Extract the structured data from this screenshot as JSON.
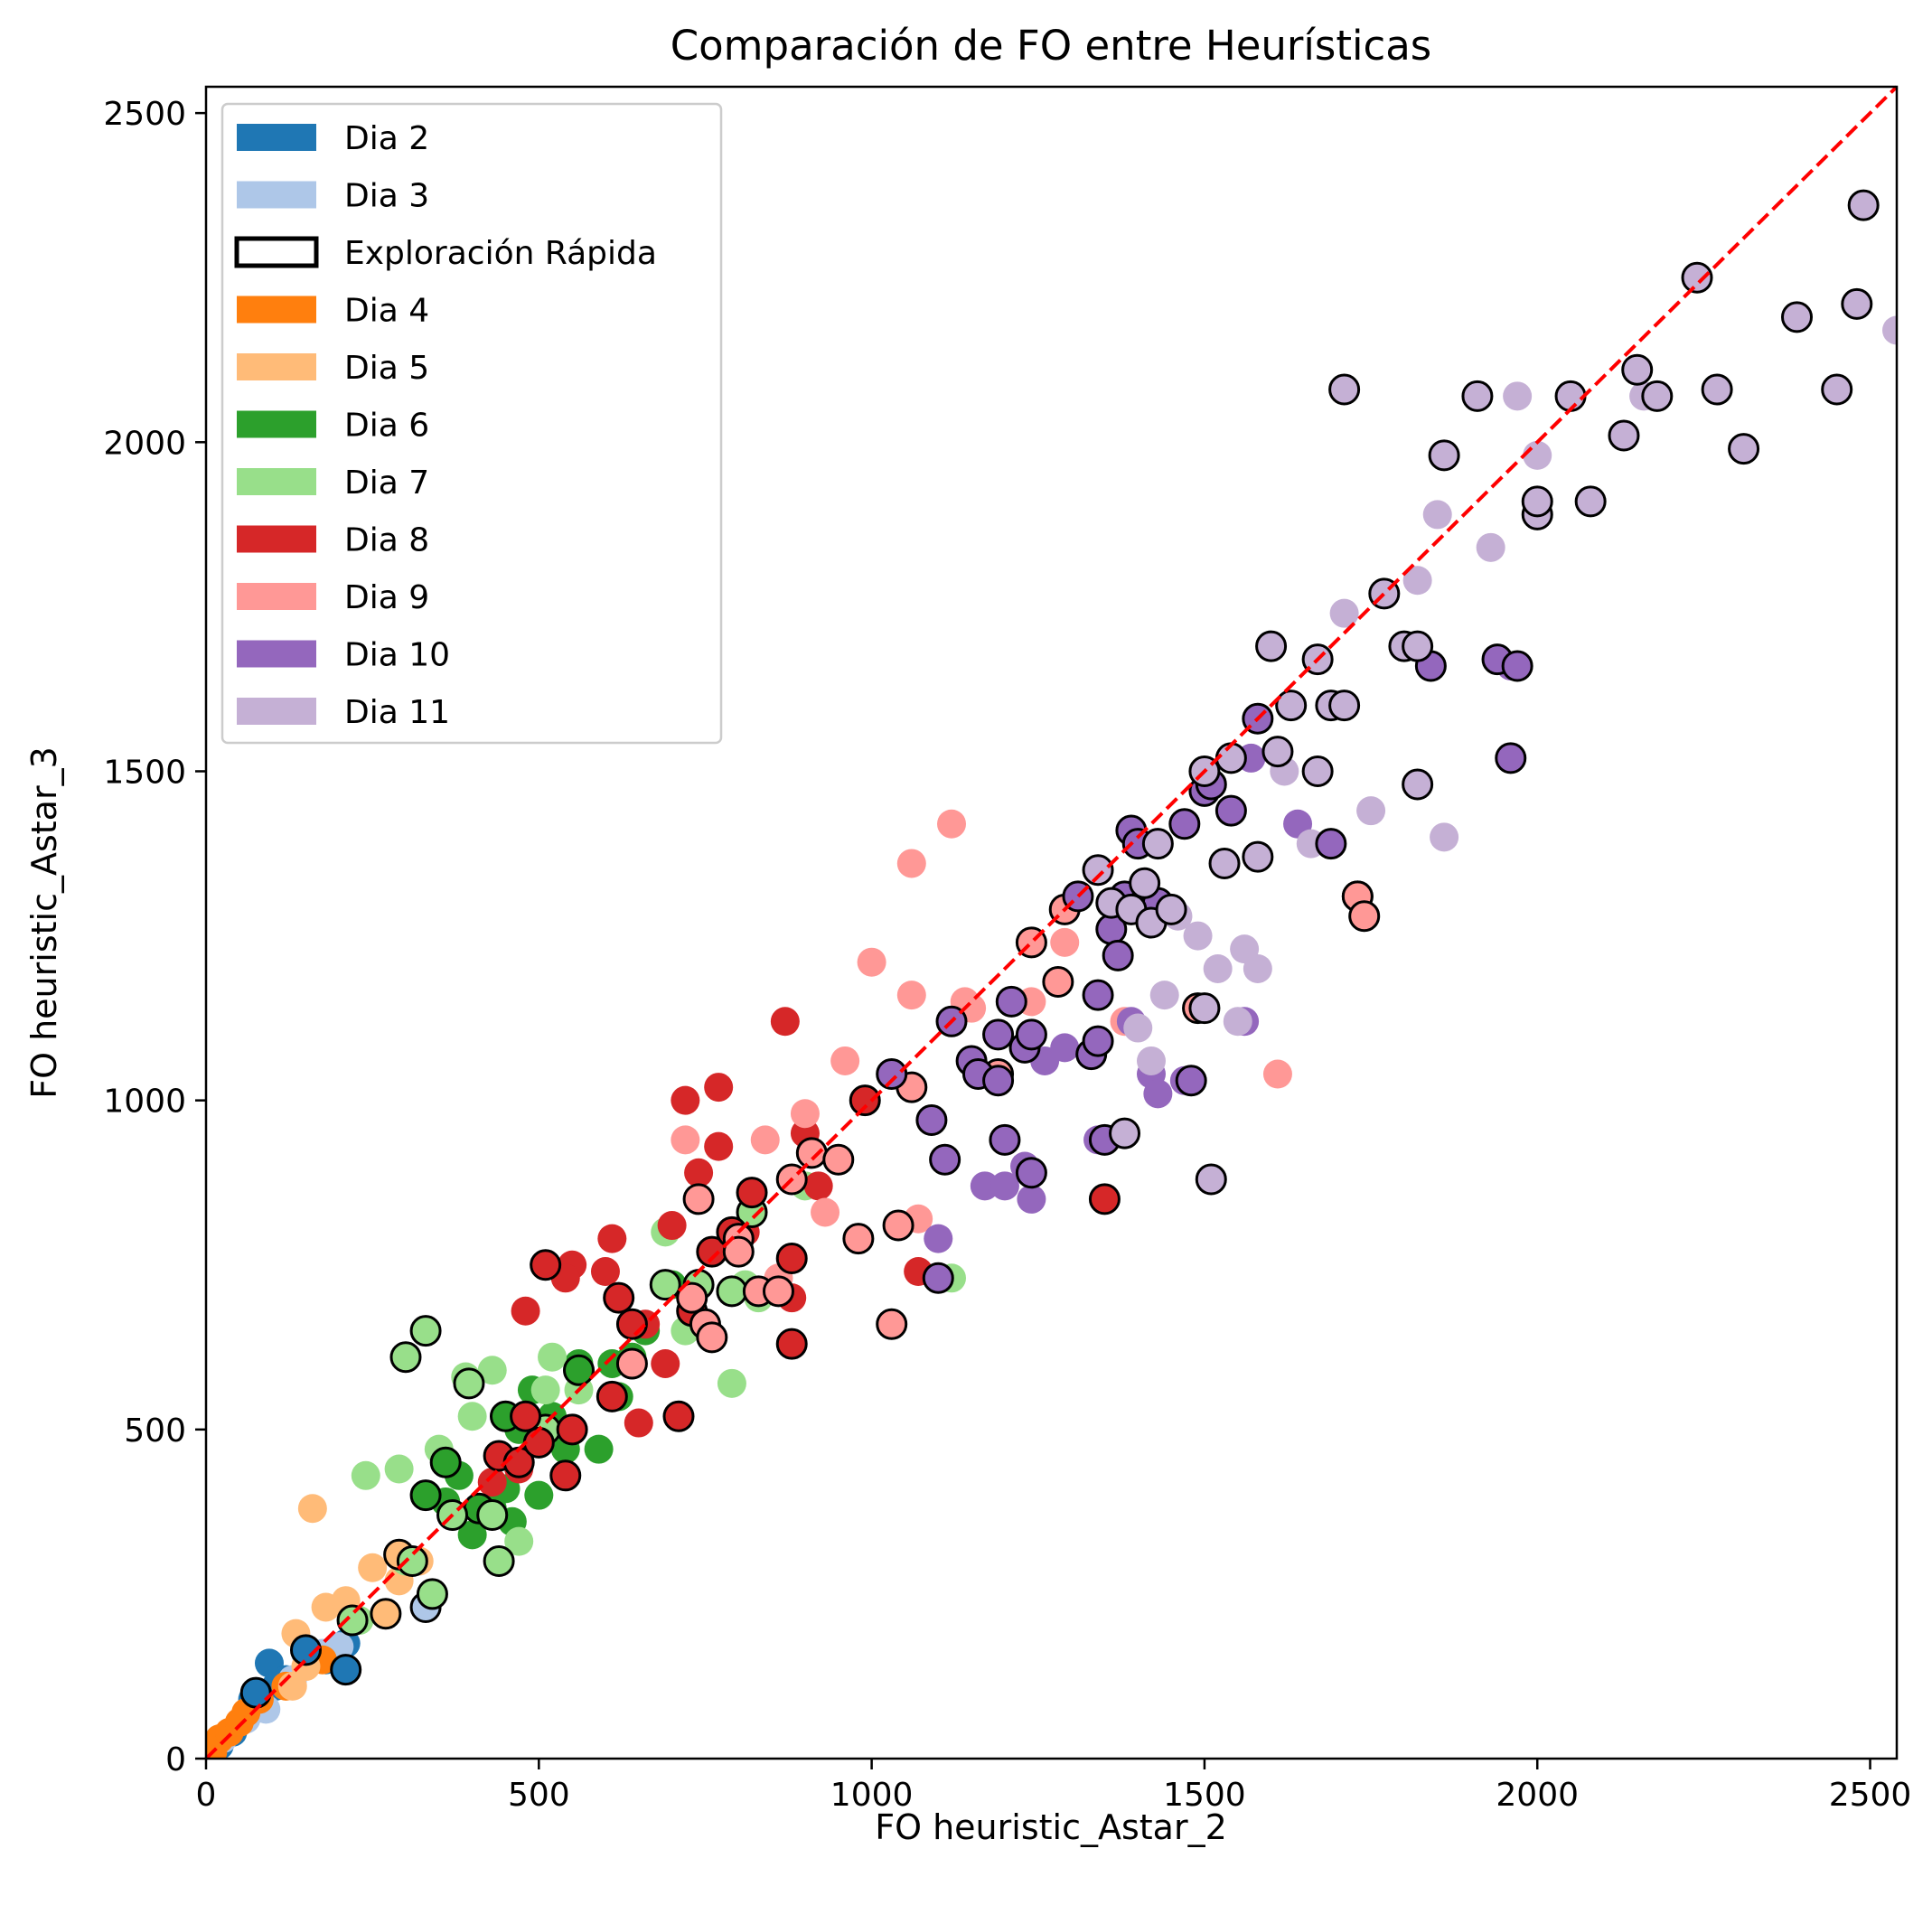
{
  "chart_data": {
    "type": "scatter",
    "title": "Comparación de FO entre Heurísticas",
    "xlabel": "FO heuristic_Astar_2",
    "ylabel": "FO heuristic_Astar_3",
    "xlim": [
      0,
      2540
    ],
    "ylim": [
      0,
      2540
    ],
    "xticks": [
      0,
      500,
      1000,
      1500,
      2000,
      2500
    ],
    "yticks": [
      0,
      500,
      1000,
      1500,
      2000,
      2500
    ],
    "grid": false,
    "legend_position": "top-left",
    "reference_line": {
      "style": "dashed",
      "color": "#ff0000",
      "slope": 1,
      "intercept": 0
    },
    "outline_legend": {
      "label": "Exploración Rápida",
      "meaning": "points with black outline"
    },
    "series": [
      {
        "name": "Dia 2",
        "color": "#1f77b4",
        "points": [
          [
            20,
            20
          ],
          [
            40,
            40
          ],
          [
            70,
            90
          ],
          [
            95,
            145
          ],
          [
            120,
            120
          ],
          [
            150,
            160
          ],
          [
            180,
            150
          ],
          [
            210,
            175
          ],
          [
            105,
            110
          ]
        ],
        "outlined": [
          [
            75,
            100
          ],
          [
            150,
            165
          ],
          [
            210,
            135
          ]
        ]
      },
      {
        "name": "Dia 3",
        "color": "#aec7e8",
        "points": [
          [
            25,
            30
          ],
          [
            60,
            60
          ],
          [
            90,
            75
          ],
          [
            130,
            120
          ],
          [
            175,
            160
          ],
          [
            200,
            170
          ],
          [
            330,
            230
          ]
        ],
        "outlined": [
          [
            330,
            230
          ]
        ]
      },
      {
        "name": "Dia 4",
        "color": "#ff7f0e",
        "points": [
          [
            10,
            10
          ],
          [
            20,
            30
          ],
          [
            35,
            40
          ],
          [
            50,
            55
          ],
          [
            60,
            70
          ],
          [
            80,
            90
          ],
          [
            120,
            110
          ],
          [
            175,
            150
          ]
        ],
        "outlined": []
      },
      {
        "name": "Dia 5",
        "color": "#ffbb78",
        "points": [
          [
            135,
            190
          ],
          [
            160,
            380
          ],
          [
            180,
            230
          ],
          [
            210,
            240
          ],
          [
            250,
            290
          ],
          [
            270,
            220
          ],
          [
            290,
            270
          ],
          [
            320,
            300
          ],
          [
            150,
            140
          ],
          [
            130,
            110
          ]
        ],
        "outlined": [
          [
            270,
            220
          ],
          [
            290,
            310
          ]
        ]
      },
      {
        "name": "Dia 6",
        "color": "#2ca02c",
        "points": [
          [
            330,
            400
          ],
          [
            360,
            390
          ],
          [
            380,
            430
          ],
          [
            400,
            340
          ],
          [
            430,
            380
          ],
          [
            460,
            360
          ],
          [
            470,
            500
          ],
          [
            490,
            560
          ],
          [
            520,
            520
          ],
          [
            540,
            470
          ],
          [
            560,
            600
          ],
          [
            590,
            470
          ],
          [
            610,
            600
          ],
          [
            620,
            550
          ],
          [
            640,
            610
          ],
          [
            660,
            650
          ],
          [
            700,
            720
          ],
          [
            450,
            410
          ],
          [
            500,
            400
          ]
        ],
        "outlined": [
          [
            330,
            400
          ],
          [
            360,
            450
          ],
          [
            410,
            380
          ],
          [
            450,
            520
          ],
          [
            560,
            590
          ]
        ]
      },
      {
        "name": "Dia 7",
        "color": "#98df8a",
        "points": [
          [
            240,
            430
          ],
          [
            290,
            440
          ],
          [
            300,
            300
          ],
          [
            350,
            470
          ],
          [
            390,
            580
          ],
          [
            400,
            520
          ],
          [
            430,
            590
          ],
          [
            470,
            330
          ],
          [
            510,
            560
          ],
          [
            520,
            610
          ],
          [
            560,
            560
          ],
          [
            690,
            800
          ],
          [
            720,
            650
          ],
          [
            790,
            570
          ],
          [
            810,
            720
          ],
          [
            830,
            700
          ],
          [
            900,
            870
          ],
          [
            1120,
            730
          ],
          [
            230,
            210
          ]
        ],
        "outlined": [
          [
            220,
            210
          ],
          [
            300,
            610
          ],
          [
            310,
            300
          ],
          [
            330,
            650
          ],
          [
            340,
            250
          ],
          [
            370,
            370
          ],
          [
            395,
            570
          ],
          [
            430,
            370
          ],
          [
            440,
            300
          ],
          [
            510,
            500
          ],
          [
            690,
            720
          ],
          [
            740,
            720
          ],
          [
            790,
            710
          ],
          [
            820,
            830
          ]
        ]
      },
      {
        "name": "Dia 8",
        "color": "#d62728",
        "points": [
          [
            480,
            680
          ],
          [
            510,
            750
          ],
          [
            550,
            750
          ],
          [
            600,
            740
          ],
          [
            610,
            790
          ],
          [
            650,
            510
          ],
          [
            660,
            660
          ],
          [
            690,
            600
          ],
          [
            700,
            810
          ],
          [
            720,
            1000
          ],
          [
            740,
            890
          ],
          [
            770,
            930
          ],
          [
            770,
            1020
          ],
          [
            810,
            800
          ],
          [
            870,
            1120
          ],
          [
            880,
            700
          ],
          [
            900,
            950
          ],
          [
            920,
            870
          ],
          [
            1070,
            740
          ],
          [
            1350,
            850
          ],
          [
            1230,
            1080
          ],
          [
            540,
            730
          ],
          [
            470,
            440
          ],
          [
            430,
            420
          ]
        ],
        "outlined": [
          [
            440,
            460
          ],
          [
            470,
            450
          ],
          [
            480,
            520
          ],
          [
            500,
            480
          ],
          [
            510,
            750
          ],
          [
            540,
            430
          ],
          [
            550,
            500
          ],
          [
            610,
            550
          ],
          [
            620,
            700
          ],
          [
            640,
            660
          ],
          [
            710,
            520
          ],
          [
            730,
            680
          ],
          [
            760,
            770
          ],
          [
            790,
            800
          ],
          [
            820,
            860
          ],
          [
            880,
            760
          ],
          [
            880,
            630
          ],
          [
            990,
            1000
          ],
          [
            1350,
            850
          ],
          [
            1730,
            1310
          ]
        ]
      },
      {
        "name": "Dia 9",
        "color": "#ff9896",
        "points": [
          [
            640,
            600
          ],
          [
            720,
            940
          ],
          [
            840,
            940
          ],
          [
            860,
            730
          ],
          [
            880,
            880
          ],
          [
            900,
            980
          ],
          [
            930,
            830
          ],
          [
            960,
            1060
          ],
          [
            1000,
            1210
          ],
          [
            1060,
            1160
          ],
          [
            1060,
            1360
          ],
          [
            1120,
            1420
          ],
          [
            1070,
            820
          ],
          [
            1140,
            1150
          ],
          [
            1240,
            1150
          ],
          [
            1290,
            1240
          ],
          [
            1380,
            1120
          ],
          [
            1610,
            1040
          ],
          [
            1740,
            1280
          ],
          [
            1150,
            1140
          ]
        ],
        "outlined": [
          [
            640,
            600
          ],
          [
            730,
            700
          ],
          [
            740,
            850
          ],
          [
            750,
            660
          ],
          [
            760,
            640
          ],
          [
            800,
            790
          ],
          [
            800,
            770
          ],
          [
            830,
            710
          ],
          [
            860,
            710
          ],
          [
            880,
            880
          ],
          [
            910,
            920
          ],
          [
            950,
            910
          ],
          [
            980,
            790
          ],
          [
            1030,
            660
          ],
          [
            1040,
            810
          ],
          [
            1060,
            1020
          ],
          [
            1190,
            1040
          ],
          [
            1240,
            1240
          ],
          [
            1280,
            1180
          ],
          [
            1290,
            1290
          ],
          [
            1490,
            1140
          ],
          [
            1730,
            1310
          ],
          [
            1740,
            1280
          ]
        ]
      },
      {
        "name": "Dia 10",
        "color": "#9467bd",
        "points": [
          [
            1100,
            790
          ],
          [
            1170,
            870
          ],
          [
            1200,
            870
          ],
          [
            1230,
            900
          ],
          [
            1240,
            850
          ],
          [
            1260,
            1060
          ],
          [
            1290,
            1080
          ],
          [
            1340,
            940
          ],
          [
            1390,
            1120
          ],
          [
            1420,
            1040
          ],
          [
            1430,
            1010
          ],
          [
            1470,
            1030
          ],
          [
            1560,
            1120
          ],
          [
            1640,
            1420
          ],
          [
            1690,
            1390
          ],
          [
            1840,
            1660
          ],
          [
            1940,
            1670
          ],
          [
            1960,
            1520
          ],
          [
            1960,
            1660
          ],
          [
            1570,
            1520
          ]
        ],
        "outlined": [
          [
            1030,
            1040
          ],
          [
            1090,
            970
          ],
          [
            1100,
            730
          ],
          [
            1110,
            910
          ],
          [
            1120,
            1120
          ],
          [
            1150,
            1060
          ],
          [
            1160,
            1040
          ],
          [
            1190,
            1030
          ],
          [
            1190,
            1100
          ],
          [
            1210,
            1150
          ],
          [
            1200,
            940
          ],
          [
            1230,
            1080
          ],
          [
            1240,
            1100
          ],
          [
            1240,
            890
          ],
          [
            1310,
            1310
          ],
          [
            1330,
            1070
          ],
          [
            1340,
            1160
          ],
          [
            1340,
            1090
          ],
          [
            1350,
            940
          ],
          [
            1360,
            1260
          ],
          [
            1370,
            1220
          ],
          [
            1380,
            1310
          ],
          [
            1390,
            1410
          ],
          [
            1400,
            1390
          ],
          [
            1410,
            1300
          ],
          [
            1430,
            1300
          ],
          [
            1470,
            1420
          ],
          [
            1480,
            1030
          ],
          [
            1500,
            1470
          ],
          [
            1510,
            1480
          ],
          [
            1540,
            1440
          ],
          [
            1580,
            1580
          ],
          [
            1690,
            1390
          ],
          [
            1840,
            1660
          ],
          [
            1940,
            1670
          ],
          [
            1960,
            1520
          ],
          [
            1970,
            1660
          ]
        ]
      },
      {
        "name": "Dia 11",
        "color": "#c5b0d5",
        "points": [
          [
            1420,
            1060
          ],
          [
            1440,
            1160
          ],
          [
            1460,
            1280
          ],
          [
            1490,
            1250
          ],
          [
            1520,
            1200
          ],
          [
            1550,
            1120
          ],
          [
            1560,
            1230
          ],
          [
            1580,
            1200
          ],
          [
            1620,
            1500
          ],
          [
            1660,
            1390
          ],
          [
            1710,
            1740
          ],
          [
            1750,
            1440
          ],
          [
            1820,
            1790
          ],
          [
            1850,
            1890
          ],
          [
            1860,
            1400
          ],
          [
            1930,
            1840
          ],
          [
            1970,
            2070
          ],
          [
            2000,
            1980
          ],
          [
            2160,
            2070
          ],
          [
            2540,
            2170
          ],
          [
            1400,
            1110
          ]
        ],
        "outlined": [
          [
            1340,
            1350
          ],
          [
            1360,
            1300
          ],
          [
            1380,
            950
          ],
          [
            1390,
            1290
          ],
          [
            1410,
            1330
          ],
          [
            1420,
            1270
          ],
          [
            1430,
            1390
          ],
          [
            1450,
            1290
          ],
          [
            1500,
            1500
          ],
          [
            1500,
            1140
          ],
          [
            1510,
            880
          ],
          [
            1530,
            1360
          ],
          [
            1540,
            1520
          ],
          [
            1580,
            1370
          ],
          [
            1600,
            1690
          ],
          [
            1610,
            1530
          ],
          [
            1630,
            1600
          ],
          [
            1670,
            1670
          ],
          [
            1670,
            1500
          ],
          [
            1690,
            1600
          ],
          [
            1710,
            1600
          ],
          [
            1710,
            2080
          ],
          [
            1770,
            1770
          ],
          [
            1800,
            1690
          ],
          [
            1820,
            1690
          ],
          [
            1820,
            1480
          ],
          [
            1860,
            1980
          ],
          [
            1910,
            2070
          ],
          [
            2000,
            1890
          ],
          [
            2000,
            1910
          ],
          [
            2050,
            2070
          ],
          [
            2080,
            1910
          ],
          [
            2130,
            2010
          ],
          [
            2150,
            2110
          ],
          [
            2180,
            2070
          ],
          [
            2240,
            2250
          ],
          [
            2270,
            2080
          ],
          [
            2310,
            1990
          ],
          [
            2390,
            2190
          ],
          [
            2450,
            2080
          ],
          [
            2480,
            2210
          ],
          [
            2490,
            2360
          ]
        ]
      }
    ]
  }
}
